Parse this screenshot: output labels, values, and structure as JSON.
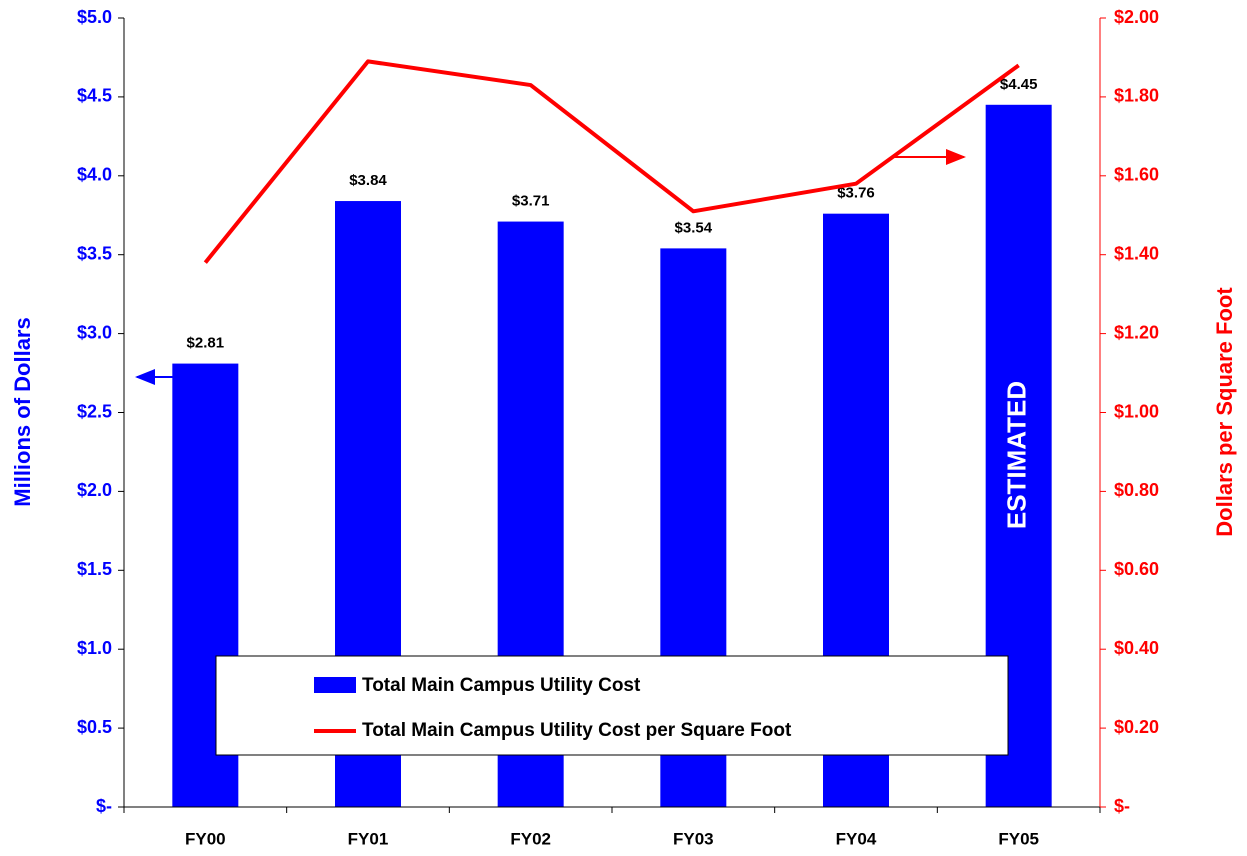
{
  "chart_data": {
    "type": "bar",
    "categories": [
      "FY00",
      "FY01",
      "FY02",
      "FY03",
      "FY04",
      "FY05"
    ],
    "series": [
      {
        "name": "Total Main Campus Utility Cost",
        "type": "bar",
        "color": "#0000ff",
        "values": [
          2.81,
          3.84,
          3.71,
          3.54,
          3.76,
          4.45
        ],
        "value_labels": [
          "$2.81",
          "$3.84",
          "$3.71",
          "$3.54",
          "$3.76",
          "$4.45"
        ]
      },
      {
        "name": "Total Main Campus Utility Cost per Square Foot",
        "type": "line",
        "color": "#ff0000",
        "axis": "y2",
        "values": [
          1.38,
          1.89,
          1.83,
          1.51,
          1.58,
          1.88
        ]
      }
    ],
    "y_label": "Millions of Dollars",
    "y2_label": "Dollars per Square Foot",
    "annotation": "ESTIMATED",
    "ylim": [
      0,
      5
    ],
    "yticks": [
      {
        "value": 0,
        "label": "$-"
      },
      {
        "value": 0.5,
        "label": "$0.5"
      },
      {
        "value": 1,
        "label": "$1.0"
      },
      {
        "value": 1.5,
        "label": "$1.5"
      },
      {
        "value": 2,
        "label": "$2.0"
      },
      {
        "value": 2.5,
        "label": "$2.5"
      },
      {
        "value": 3,
        "label": "$3.0"
      },
      {
        "value": 3.5,
        "label": "$3.5"
      },
      {
        "value": 4,
        "label": "$4.0"
      },
      {
        "value": 4.5,
        "label": "$4.5"
      },
      {
        "value": 5,
        "label": "$5.0"
      }
    ],
    "y2lim": [
      0,
      2
    ],
    "y2ticks": [
      {
        "value": 0,
        "label": "$-"
      },
      {
        "value": 0.2,
        "label": "$0.20"
      },
      {
        "value": 0.4,
        "label": "$0.40"
      },
      {
        "value": 0.6,
        "label": "$0.60"
      },
      {
        "value": 0.8,
        "label": "$0.80"
      },
      {
        "value": 1,
        "label": "$1.00"
      },
      {
        "value": 1.2,
        "label": "$1.20"
      },
      {
        "value": 1.4,
        "label": "$1.40"
      },
      {
        "value": 1.6,
        "label": "$1.60"
      },
      {
        "value": 1.8,
        "label": "$1.80"
      },
      {
        "value": 2,
        "label": "$2.00"
      }
    ],
    "grid": false
  }
}
